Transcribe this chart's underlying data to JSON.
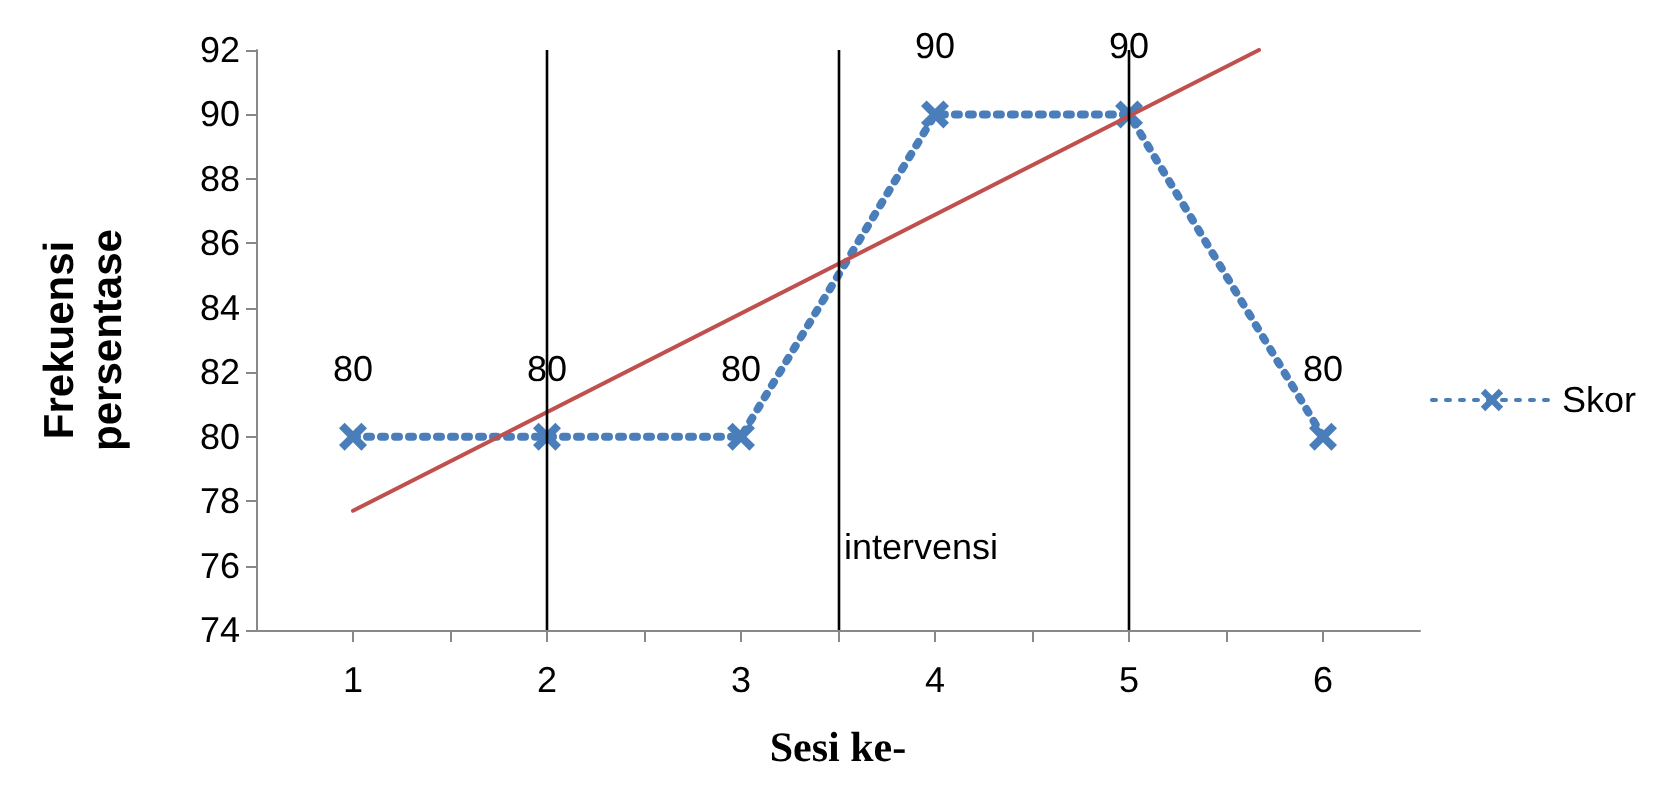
{
  "chart_data": {
    "type": "line",
    "xlabel": "Sesi ke-",
    "ylabel": "Frekuensi persentase",
    "x": [
      1,
      2,
      3,
      4,
      5,
      6
    ],
    "series": [
      {
        "name": "Skor",
        "color": "#4a7ebb",
        "values": [
          80,
          80,
          80,
          90,
          90,
          80
        ],
        "value_labels": [
          "80",
          "80",
          "80",
          "90",
          "90",
          "80"
        ],
        "marker": "cross",
        "line_style": "dotted"
      },
      {
        "type": "line",
        "color": "#c0504d",
        "x": [
          1,
          5.67
        ],
        "values": [
          77.7,
          92
        ],
        "marker": "none",
        "line_style": "solid"
      }
    ],
    "xlim": [
      0.5,
      6.5
    ],
    "xticks": [
      {
        "value": 1,
        "label": "1"
      },
      {
        "value": 1.5,
        "label": null
      },
      {
        "value": 2,
        "label": "2"
      },
      {
        "value": 2.5,
        "label": null
      },
      {
        "value": 3,
        "label": "3"
      },
      {
        "value": 3.5,
        "label": null
      },
      {
        "value": 4,
        "label": "4"
      },
      {
        "value": 4.5,
        "label": null
      },
      {
        "value": 5,
        "label": "5"
      },
      {
        "value": 5.5,
        "label": null
      },
      {
        "value": 6,
        "label": "6"
      }
    ],
    "ylim": [
      74,
      92
    ],
    "yticks": [
      74,
      76,
      78,
      80,
      82,
      84,
      86,
      88,
      90,
      92
    ],
    "ref_lines": [
      {
        "axis": "x",
        "value": 2,
        "label": null,
        "color": "#000000"
      },
      {
        "axis": "x",
        "value": 3.5,
        "label": "intervensi",
        "color": "#000000"
      },
      {
        "axis": "x",
        "value": 5,
        "label": null,
        "color": "#000000"
      }
    ],
    "grid": false,
    "legend": "right"
  }
}
